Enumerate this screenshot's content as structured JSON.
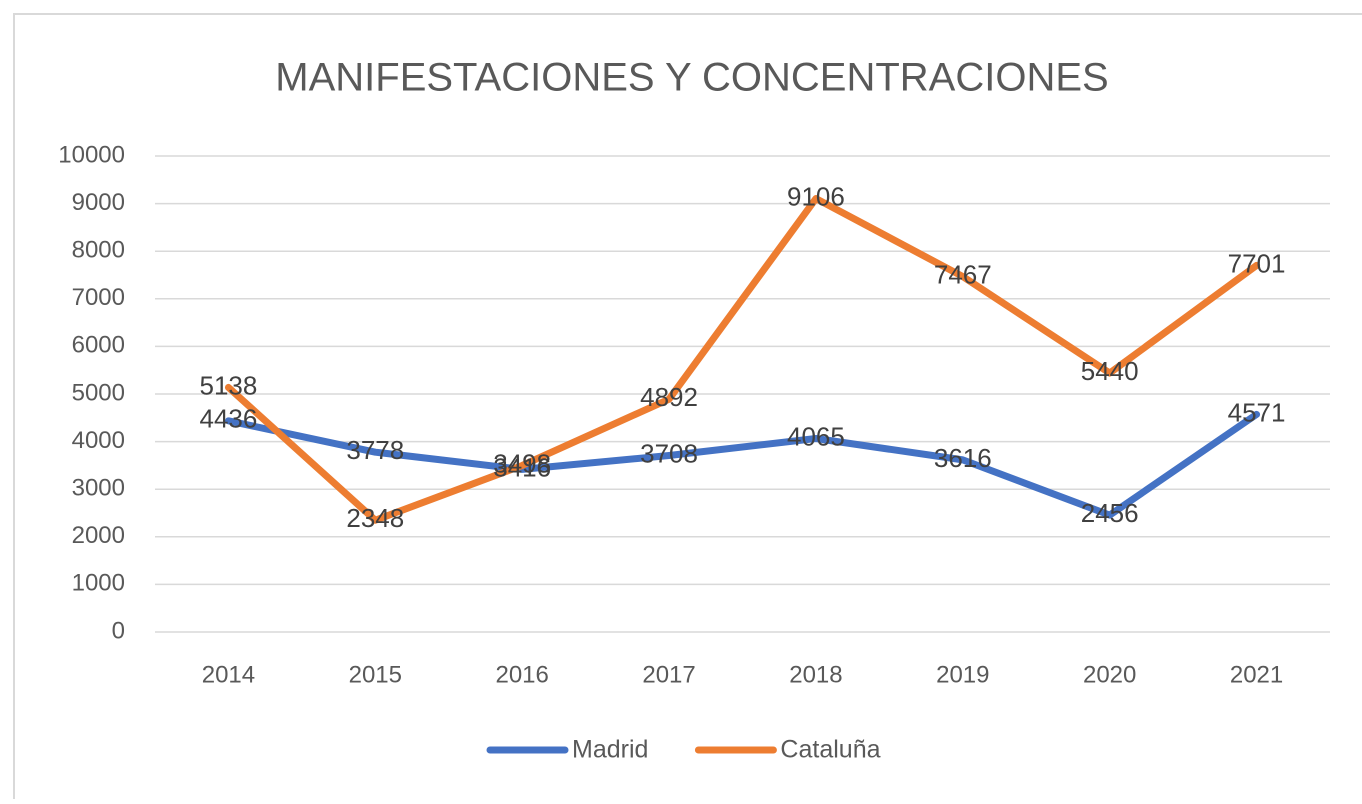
{
  "chart_data": {
    "type": "line",
    "title": "MANIFESTACIONES Y CONCENTRACIONES",
    "categories": [
      "2014",
      "2015",
      "2016",
      "2017",
      "2018",
      "2019",
      "2020",
      "2021"
    ],
    "series": [
      {
        "name": "Madrid",
        "color": "#4472c4",
        "values": [
          4436,
          3778,
          3416,
          3708,
          4065,
          3616,
          2456,
          4571
        ]
      },
      {
        "name": "Cataluña",
        "color": "#ed7d31",
        "values": [
          5138,
          2348,
          3498,
          4892,
          9106,
          7467,
          5440,
          7701
        ]
      }
    ],
    "ylim": [
      0,
      10000
    ],
    "yticks": [
      0,
      1000,
      2000,
      3000,
      4000,
      5000,
      6000,
      7000,
      8000,
      9000,
      10000
    ],
    "grid": true,
    "legend": "bottom"
  }
}
